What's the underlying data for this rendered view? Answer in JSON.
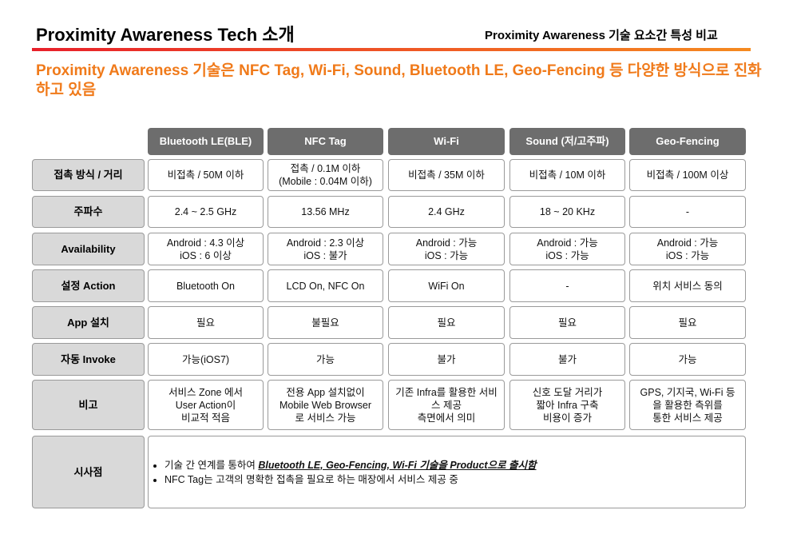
{
  "header": {
    "title": "Proximity Awareness Tech 소개",
    "subtitle": "Proximity Awareness 기술 요소간 특성 비교"
  },
  "headline": "Proximity Awareness 기술은 NFC Tag, Wi-Fi, Sound, Bluetooth LE, Geo-Fencing 등 다양한 방식으로 진화하고 있음",
  "table": {
    "columns": [
      "Bluetooth LE(BLE)",
      "NFC Tag",
      "Wi-Fi",
      "Sound (저/고주파)",
      "Geo-Fencing"
    ],
    "rows": [
      {
        "label": "접촉 방식 / 거리",
        "cells": [
          "비접촉 / 50M 이하",
          "접촉 / 0.1M 이하\n(Mobile : 0.04M 이하)",
          "비접촉 / 35M 이하",
          "비접촉 / 10M 이하",
          "비접촉 / 100M 이상"
        ]
      },
      {
        "label": "주파수",
        "cells": [
          "2.4 ~ 2.5 GHz",
          "13.56 MHz",
          "2.4 GHz",
          "18 ~ 20 KHz",
          "-"
        ]
      },
      {
        "label": "Availability",
        "cells": [
          "Android : 4.3 이상\niOS : 6 이상",
          "Android : 2.3 이상\niOS : 불가",
          "Android : 가능\niOS : 가능",
          "Android : 가능\niOS : 가능",
          "Android : 가능\niOS : 가능"
        ]
      },
      {
        "label": "설정 Action",
        "cells": [
          "Bluetooth On",
          "LCD On, NFC On",
          "WiFi On",
          "-",
          "위치 서비스 동의"
        ]
      },
      {
        "label": "App 설치",
        "cells": [
          "필요",
          "불필요",
          "필요",
          "필요",
          "필요"
        ]
      },
      {
        "label": "자동 Invoke",
        "cells": [
          "가능(iOS7)",
          "가능",
          "불가",
          "불가",
          "가능"
        ]
      },
      {
        "label": "비고",
        "cells": [
          "서비스 Zone 에서\nUser Action이\n비교적 적음",
          "전용 App 설치없이\nMobile Web Browser\n로 서비스 가능",
          "기존 Infra를 활용한 서비\n스 제공\n측면에서 의미",
          "신호 도달 거리가\n짧아 Infra 구축\n비용이 증가",
          "GPS, 기지국, Wi-Fi 등\n을 활용한 측위를\n통한 서비스 제공"
        ]
      }
    ],
    "summary": {
      "label": "시사점",
      "bullets": [
        [
          "기술 간 연계를 통하여 ",
          "Bluetooth LE, Geo-Fencing, Wi-Fi 기술을 Product으로 출시함"
        ],
        [
          "NFC Tag는 고객의 명확한 접촉을  필요로 하는 매장에서 서비스 제공 중"
        ]
      ]
    }
  }
}
